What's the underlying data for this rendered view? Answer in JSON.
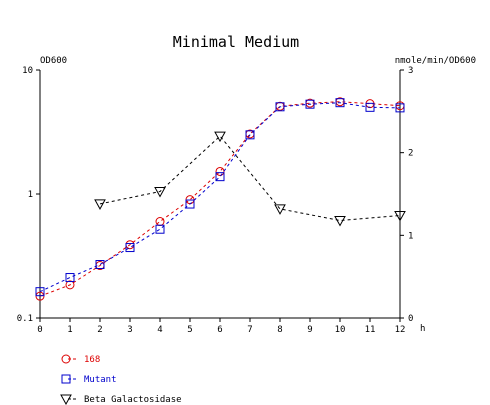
{
  "chart_data": {
    "type": "line",
    "title": "Minimal Medium",
    "y_left_label": "OD600",
    "y_right_label": "nmole/min/OD600",
    "x_unit_label": "h",
    "x_ticks": [
      "0",
      "1",
      "2",
      "3",
      "4",
      "5",
      "6",
      "7",
      "8",
      "9",
      "10",
      "11",
      "12"
    ],
    "y_left_ticks": [
      "10",
      "1",
      "0.1"
    ],
    "y_left_scale": "log",
    "y_left_range": [
      0.1,
      10
    ],
    "y_right_ticks": [
      "3",
      "2",
      "1",
      "0"
    ],
    "y_right_range": [
      0,
      3
    ],
    "x_range": [
      0,
      12
    ],
    "series": [
      {
        "name": "168",
        "axis": "left",
        "color": "#dd0000",
        "marker": "circle",
        "line_style": "dashed",
        "x": [
          0,
          1,
          2,
          3,
          4,
          5,
          6,
          7,
          8,
          9,
          10,
          11,
          12
        ],
        "y": [
          0.15,
          0.185,
          0.265,
          0.39,
          0.6,
          0.9,
          1.52,
          3.05,
          5.1,
          5.4,
          5.55,
          5.35,
          5.15
        ]
      },
      {
        "name": "Mutant",
        "axis": "left",
        "color": "#0000cc",
        "marker": "square",
        "line_style": "dashed",
        "x": [
          0,
          1,
          2,
          3,
          4,
          5,
          6,
          7,
          8,
          9,
          10,
          11,
          12
        ],
        "y": [
          0.163,
          0.212,
          0.27,
          0.37,
          0.52,
          0.83,
          1.38,
          3.0,
          5.05,
          5.3,
          5.45,
          5.0,
          4.95
        ]
      },
      {
        "name": "Beta Galactosidase",
        "axis": "right",
        "color": "#000000",
        "marker": "triangle-down",
        "line_style": "dashed",
        "x": [
          2,
          4,
          6,
          8,
          10,
          12
        ],
        "y": [
          1.38,
          1.53,
          2.2,
          1.32,
          1.18,
          1.24
        ]
      }
    ]
  }
}
